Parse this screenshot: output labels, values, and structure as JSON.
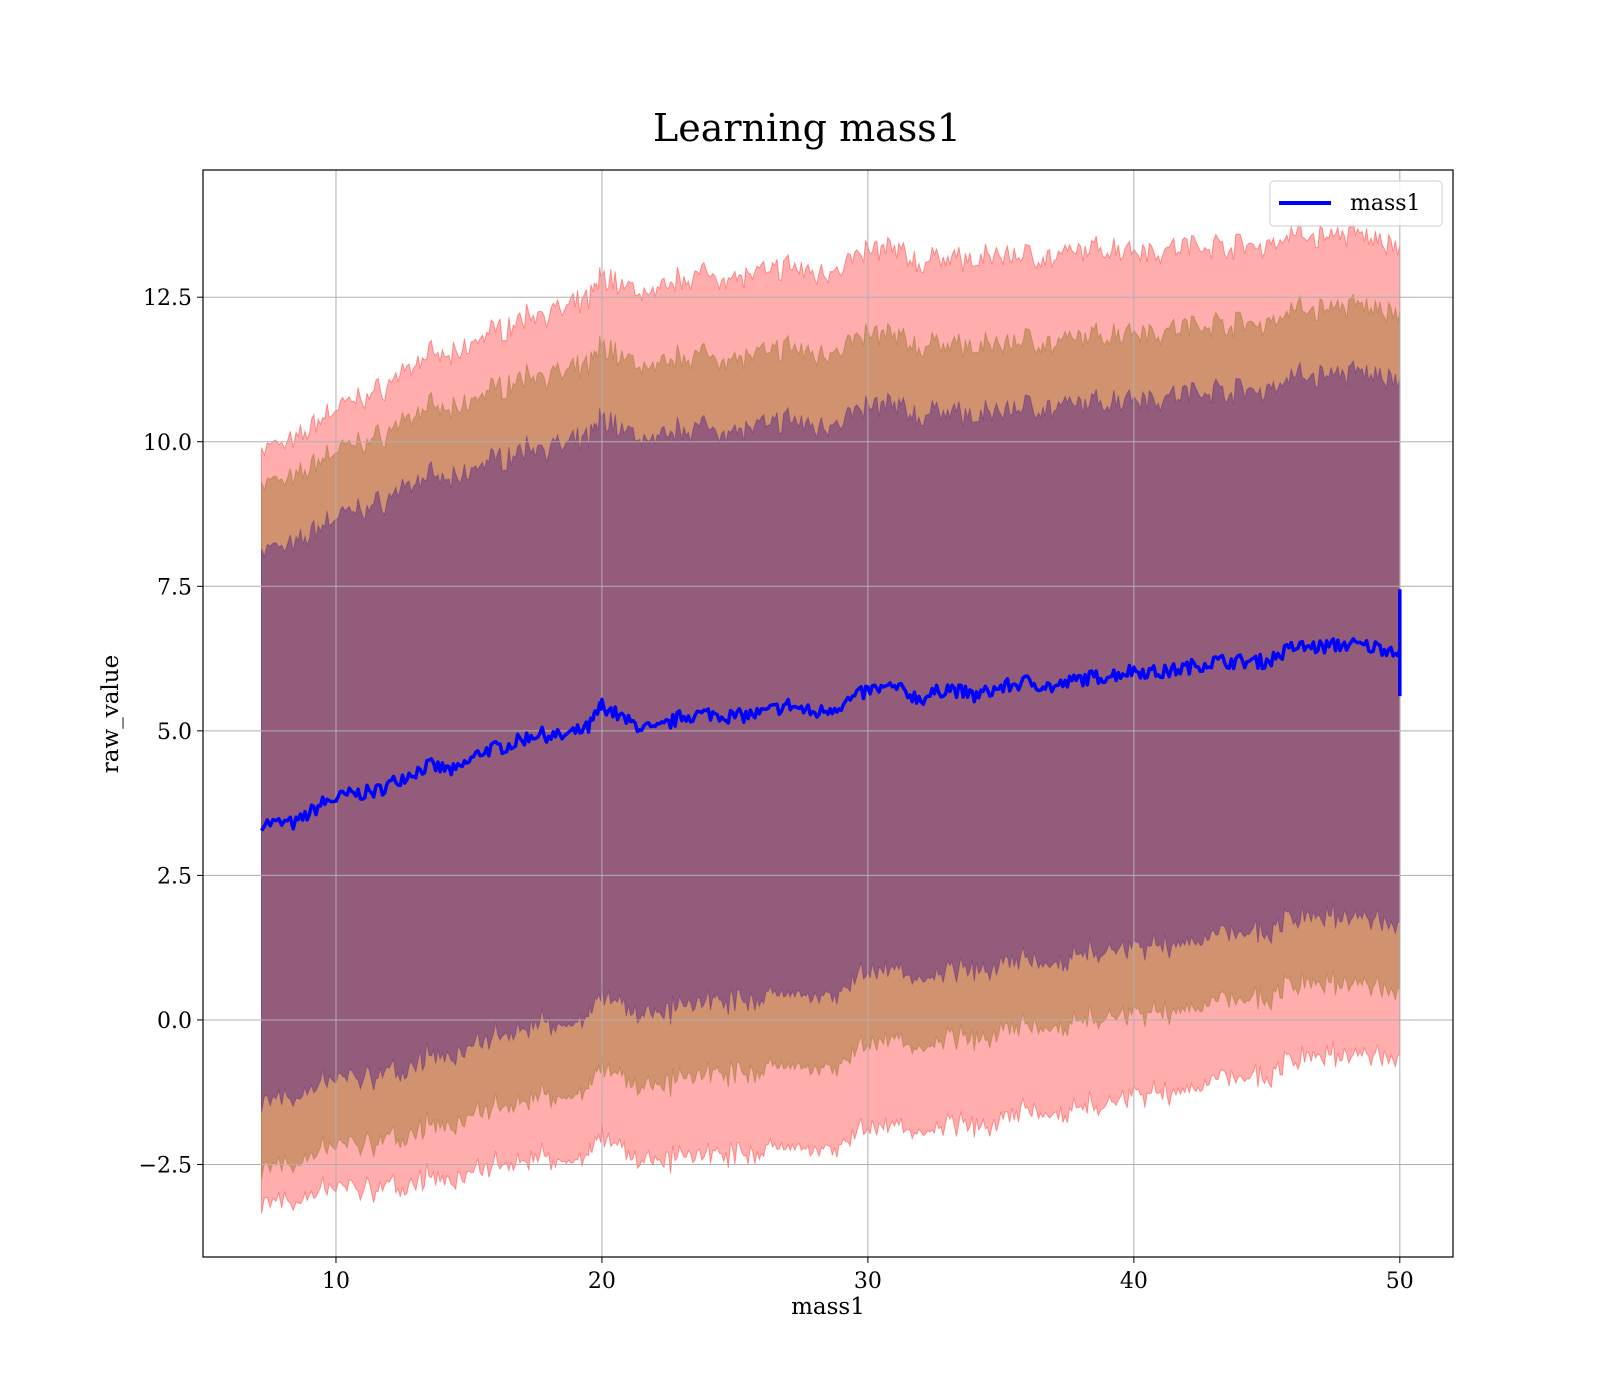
{
  "chart_data": {
    "type": "area",
    "title": "Learning mass1",
    "xlabel": "mass1",
    "ylabel": "raw_value",
    "xlim": [
      5.0,
      52.0
    ],
    "ylim": [
      -4.1,
      14.7
    ],
    "x_ticks": [
      10,
      20,
      30,
      40,
      50
    ],
    "x_tick_labels": [
      "10",
      "20",
      "30",
      "40",
      "50"
    ],
    "y_ticks": [
      -2.5,
      0.0,
      2.5,
      5.0,
      7.5,
      10.0,
      12.5
    ],
    "y_tick_labels": [
      "−2.5",
      "0.0",
      "2.5",
      "5.0",
      "7.5",
      "10.0",
      "12.5"
    ],
    "grid": true,
    "legend": {
      "position": "top-right",
      "entries": [
        "mass1"
      ]
    },
    "x": [
      7.2,
      8.5,
      9.5,
      10.5,
      11.5,
      12.5,
      13.5,
      14.5,
      15.5,
      16.5,
      17.5,
      18.5,
      19.5,
      20.0,
      21.0,
      22.0,
      23.0,
      24.0,
      25.0,
      26.0,
      27.0,
      28.0,
      29.0,
      30.0,
      31.0,
      32.0,
      33.0,
      34.0,
      35.0,
      36.0,
      37.0,
      38.0,
      39.0,
      40.0,
      41.0,
      42.0,
      43.0,
      44.0,
      45.0,
      46.0,
      47.0,
      48.0,
      49.0,
      50.0
    ],
    "series": [
      {
        "name": "mass1",
        "color": "#0000ff",
        "values": [
          3.4,
          3.4,
          3.75,
          3.9,
          3.95,
          4.2,
          4.4,
          4.3,
          4.65,
          4.75,
          4.95,
          4.9,
          5.05,
          5.45,
          5.15,
          5.0,
          5.25,
          5.3,
          5.25,
          5.3,
          5.45,
          5.3,
          5.45,
          5.7,
          5.75,
          5.55,
          5.75,
          5.6,
          5.75,
          5.85,
          5.75,
          5.9,
          5.95,
          6.05,
          6.0,
          6.1,
          6.2,
          6.2,
          6.2,
          6.45,
          6.45,
          6.5,
          6.45,
          6.4
        ]
      }
    ],
    "bands": [
      {
        "sigma": 3,
        "color": "#ff0000",
        "opacity": 0.32,
        "half_width": [
          6.5,
          6.6,
          6.7,
          6.8,
          6.9,
          7.0,
          7.1,
          7.15,
          7.2,
          7.25,
          7.3,
          7.35,
          7.4,
          7.45,
          7.5,
          7.55,
          7.6,
          7.6,
          7.6,
          7.6,
          7.6,
          7.6,
          7.6,
          7.6,
          7.6,
          7.5,
          7.5,
          7.5,
          7.5,
          7.4,
          7.4,
          7.4,
          7.4,
          7.3,
          7.3,
          7.3,
          7.2,
          7.2,
          7.2,
          7.15,
          7.1,
          7.1,
          7.05,
          7.0
        ]
      },
      {
        "sigma": 2,
        "color": "#8a6a12",
        "opacity": 0.4,
        "half_width": [
          5.9,
          5.95,
          6.0,
          6.05,
          6.1,
          6.15,
          6.2,
          6.2,
          6.2,
          6.25,
          6.25,
          6.25,
          6.25,
          6.25,
          6.25,
          6.25,
          6.25,
          6.2,
          6.2,
          6.2,
          6.2,
          6.2,
          6.2,
          6.15,
          6.1,
          6.05,
          6.0,
          6.0,
          5.95,
          5.95,
          5.9,
          5.9,
          5.9,
          5.9,
          5.9,
          5.9,
          5.85,
          5.85,
          5.85,
          5.85,
          5.85,
          5.85,
          5.85,
          5.85
        ]
      },
      {
        "sigma": 1,
        "color": "#4a1a8a",
        "opacity": 0.45,
        "half_width": [
          4.75,
          4.8,
          4.85,
          4.9,
          4.95,
          5.0,
          5.0,
          5.0,
          5.0,
          5.0,
          5.0,
          5.0,
          5.0,
          5.0,
          5.0,
          5.0,
          5.0,
          4.95,
          4.95,
          4.95,
          4.95,
          4.95,
          4.95,
          4.9,
          4.9,
          4.85,
          4.85,
          4.8,
          4.8,
          4.8,
          4.8,
          4.75,
          4.75,
          4.75,
          4.75,
          4.75,
          4.7,
          4.7,
          4.7,
          4.7,
          4.7,
          4.7,
          4.7,
          4.7
        ]
      }
    ],
    "end_spike": {
      "x": 50.0,
      "y_min": 5.6,
      "y_max": 7.45
    }
  }
}
